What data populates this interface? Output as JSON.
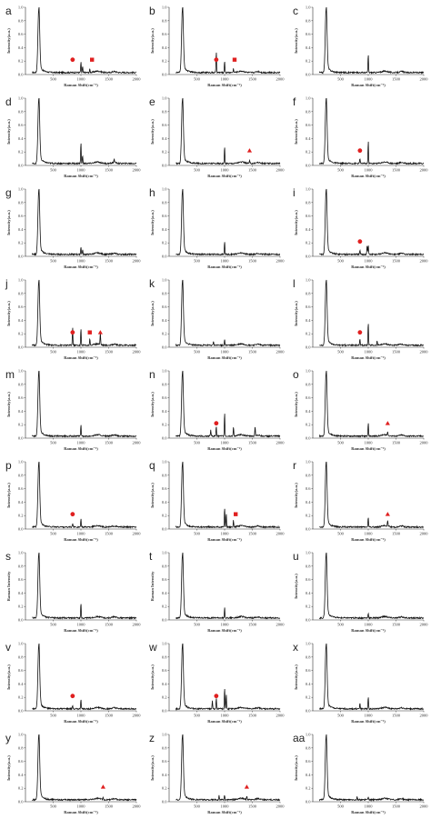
{
  "figure": {
    "columns": 3,
    "rows": 9
  },
  "chart_data": [
    {
      "id": "a",
      "type": "line",
      "xlabel": "Raman Shift(cm⁻¹)",
      "ylabel": "Intensity(a.u.)",
      "xlim": [
        0,
        2000
      ],
      "ylim": [
        0,
        1.0
      ],
      "xticks": [
        500,
        1000,
        1500,
        2000
      ],
      "yticks": [
        0.0,
        0.2,
        0.4,
        0.6,
        0.8,
        1.0
      ],
      "peaks": [
        [
          1000,
          0.16
        ],
        [
          1030,
          0.09
        ],
        [
          1160,
          0.05
        ]
      ],
      "markers": [
        {
          "shape": "circle",
          "x": 850
        },
        {
          "shape": "square",
          "x": 1200
        }
      ]
    },
    {
      "id": "b",
      "type": "line",
      "xlabel": "Raman Shift(cm⁻¹)",
      "ylabel": "Intensity(a.u.)",
      "xlim": [
        0,
        2000
      ],
      "ylim": [
        0,
        1.0
      ],
      "xticks": [
        500,
        1000,
        1500,
        2000
      ],
      "yticks": [
        0.0,
        0.2,
        0.4,
        0.6,
        0.8,
        1.0
      ],
      "peaks": [
        [
          850,
          0.32
        ],
        [
          1000,
          0.18
        ],
        [
          1160,
          0.06
        ]
      ],
      "markers": [
        {
          "shape": "circle",
          "x": 850
        },
        {
          "shape": "square",
          "x": 1180
        }
      ]
    },
    {
      "id": "c",
      "type": "line",
      "xlabel": "Raman Shift(cm⁻¹)",
      "ylabel": "Intensity(a.u.)",
      "xlim": [
        0,
        2000
      ],
      "ylim": [
        0,
        1.0
      ],
      "xticks": [
        500,
        1000,
        1500,
        2000
      ],
      "yticks": [
        0.0,
        0.2,
        0.4,
        0.6,
        0.8,
        1.0
      ],
      "peaks": [
        [
          1000,
          0.28
        ]
      ],
      "markers": []
    },
    {
      "id": "d",
      "type": "line",
      "xlabel": "Raman Shift(cm⁻¹)",
      "ylabel": "Intensity(a.u.)",
      "xlim": [
        0,
        2000
      ],
      "ylim": [
        0,
        1.0
      ],
      "xticks": [
        500,
        1000,
        1500,
        2000
      ],
      "yticks": [
        0.0,
        0.2,
        0.4,
        0.6,
        0.8,
        1.0
      ],
      "peaks": [
        [
          1000,
          0.32
        ],
        [
          1030,
          0.12
        ],
        [
          1600,
          0.06
        ]
      ],
      "markers": []
    },
    {
      "id": "e",
      "type": "line",
      "xlabel": "Raman Shift(cm⁻¹)",
      "ylabel": "Intensity(a.u.)",
      "xlim": [
        0,
        2000
      ],
      "ylim": [
        0,
        1.0
      ],
      "xticks": [
        500,
        1000,
        1500,
        2000
      ],
      "yticks": [
        0.0,
        0.2,
        0.4,
        0.6,
        0.8,
        1.0
      ],
      "peaks": [
        [
          1000,
          0.25
        ],
        [
          1450,
          0.04
        ]
      ],
      "markers": [
        {
          "shape": "triangle",
          "x": 1450
        }
      ]
    },
    {
      "id": "f",
      "type": "line",
      "xlabel": "Raman Shift(cm⁻¹)",
      "ylabel": "Intensity(a.u.)",
      "xlim": [
        0,
        2000
      ],
      "ylim": [
        0,
        1.0
      ],
      "xticks": [
        500,
        1000,
        1500,
        2000
      ],
      "yticks": [
        0.0,
        0.2,
        0.4,
        0.6,
        0.8,
        1.0
      ],
      "peaks": [
        [
          850,
          0.08
        ],
        [
          1000,
          0.34
        ]
      ],
      "markers": [
        {
          "shape": "circle",
          "x": 850
        }
      ]
    },
    {
      "id": "g",
      "type": "line",
      "xlabel": "Raman Shift(cm⁻¹)",
      "ylabel": "Intensity(a.u.)",
      "xlim": [
        0,
        2000
      ],
      "ylim": [
        0,
        1.0
      ],
      "xticks": [
        500,
        1000,
        1500,
        2000
      ],
      "yticks": [
        0.0,
        0.2,
        0.4,
        0.6,
        0.8,
        1.0
      ],
      "peaks": [
        [
          1000,
          0.12
        ],
        [
          1030,
          0.07
        ]
      ],
      "markers": []
    },
    {
      "id": "h",
      "type": "line",
      "xlabel": "Raman Shift(cm⁻¹)",
      "ylabel": "Intensity(a.u.)",
      "xlim": [
        0,
        2000
      ],
      "ylim": [
        0,
        1.0
      ],
      "xticks": [
        500,
        1000,
        1500,
        2000
      ],
      "yticks": [
        0.0,
        0.2,
        0.4,
        0.6,
        0.8,
        1.0
      ],
      "peaks": [
        [
          1000,
          0.2
        ]
      ],
      "markers": []
    },
    {
      "id": "i",
      "type": "line",
      "xlabel": "Raman Shift(cm⁻¹)",
      "ylabel": "Intensity(a.u.)",
      "xlim": [
        0,
        2000
      ],
      "ylim": [
        0,
        1.0
      ],
      "xticks": [
        500,
        1000,
        1500,
        2000
      ],
      "yticks": [
        0.0,
        0.2,
        0.4,
        0.6,
        0.8,
        1.0
      ],
      "peaks": [
        [
          850,
          0.06
        ],
        [
          980,
          0.14
        ],
        [
          1000,
          0.14
        ]
      ],
      "markers": [
        {
          "shape": "circle",
          "x": 850
        }
      ]
    },
    {
      "id": "j",
      "type": "line",
      "xlabel": "Raman Shift(cm⁻¹)",
      "ylabel": "Intensity(a.u.)",
      "xlim": [
        0,
        2000
      ],
      "ylim": [
        0,
        1.0
      ],
      "xticks": [
        500,
        1000,
        1500,
        2000
      ],
      "yticks": [
        0.0,
        0.2,
        0.4,
        0.6,
        0.8,
        1.0
      ],
      "peaks": [
        [
          850,
          0.28
        ],
        [
          1000,
          0.25
        ],
        [
          1160,
          0.1
        ],
        [
          1350,
          0.18
        ]
      ],
      "markers": [
        {
          "shape": "circle",
          "x": 850
        },
        {
          "shape": "square",
          "x": 1160
        },
        {
          "shape": "triangle",
          "x": 1350
        }
      ]
    },
    {
      "id": "k",
      "type": "line",
      "xlabel": "Raman Shift(cm⁻¹)",
      "ylabel": "Intensity(a.u.)",
      "xlim": [
        0,
        2000
      ],
      "ylim": [
        0,
        1.0
      ],
      "xticks": [
        500,
        1000,
        1500,
        2000
      ],
      "yticks": [
        0.0,
        0.2,
        0.4,
        0.6,
        0.8,
        1.0
      ],
      "peaks": [
        [
          800,
          0.05
        ],
        [
          1000,
          0.08
        ]
      ],
      "markers": []
    },
    {
      "id": "l",
      "type": "line",
      "xlabel": "Raman Shift(cm⁻¹)",
      "ylabel": "Intensity(a.u.)",
      "xlim": [
        0,
        2000
      ],
      "ylim": [
        0,
        1.0
      ],
      "xticks": [
        500,
        1000,
        1500,
        2000
      ],
      "yticks": [
        0.0,
        0.2,
        0.4,
        0.6,
        0.8,
        1.0
      ],
      "peaks": [
        [
          850,
          0.1
        ],
        [
          1000,
          0.35
        ],
        [
          1160,
          0.06
        ]
      ],
      "markers": [
        {
          "shape": "circle",
          "x": 850
        }
      ]
    },
    {
      "id": "m",
      "type": "line",
      "xlabel": "Raman Shift(cm⁻¹)",
      "ylabel": "Intensity(a.u.)",
      "xlim": [
        0,
        2000
      ],
      "ylim": [
        0,
        1.0
      ],
      "xticks": [
        500,
        1000,
        1500,
        2000
      ],
      "yticks": [
        0.0,
        0.2,
        0.4,
        0.6,
        0.8,
        1.0
      ],
      "peaks": [
        [
          1000,
          0.18
        ]
      ],
      "markers": []
    },
    {
      "id": "n",
      "type": "line",
      "xlabel": "Raman Shift(cm⁻¹)",
      "ylabel": "Intensity(a.u.)",
      "xlim": [
        0,
        2000
      ],
      "ylim": [
        0,
        1.0
      ],
      "xticks": [
        500,
        1000,
        1500,
        2000
      ],
      "yticks": [
        0.0,
        0.2,
        0.4,
        0.6,
        0.8,
        1.0
      ],
      "peaks": [
        [
          750,
          0.1
        ],
        [
          850,
          0.16
        ],
        [
          1000,
          0.36
        ],
        [
          1160,
          0.14
        ],
        [
          1550,
          0.14
        ]
      ],
      "markers": [
        {
          "shape": "circle",
          "x": 850
        }
      ]
    },
    {
      "id": "o",
      "type": "line",
      "xlabel": "Raman Shift(cm⁻¹)",
      "ylabel": "Intensity(a.u.)",
      "xlim": [
        0,
        2000
      ],
      "ylim": [
        0,
        1.0
      ],
      "xticks": [
        500,
        1000,
        1500,
        2000
      ],
      "yticks": [
        0.0,
        0.2,
        0.4,
        0.6,
        0.8,
        1.0
      ],
      "peaks": [
        [
          1000,
          0.2
        ],
        [
          1350,
          0.06
        ]
      ],
      "markers": [
        {
          "shape": "triangle",
          "x": 1350
        }
      ]
    },
    {
      "id": "p",
      "type": "line",
      "xlabel": "Raman Shift(cm⁻¹)",
      "ylabel": "Intensity(a.u.)",
      "xlim": [
        0,
        2000
      ],
      "ylim": [
        0,
        1.0
      ],
      "xticks": [
        500,
        1000,
        1500,
        2000
      ],
      "yticks": [
        0.0,
        0.2,
        0.4,
        0.6,
        0.8,
        1.0
      ],
      "peaks": [
        [
          850,
          0.05
        ],
        [
          1000,
          0.12
        ]
      ],
      "markers": [
        {
          "shape": "circle",
          "x": 850
        }
      ]
    },
    {
      "id": "q",
      "type": "line",
      "xlabel": "Raman Shift(cm⁻¹)",
      "ylabel": "Intensity(a.u.)",
      "xlim": [
        0,
        2000
      ],
      "ylim": [
        0,
        1.0
      ],
      "xticks": [
        500,
        1000,
        1500,
        2000
      ],
      "yticks": [
        0.0,
        0.2,
        0.4,
        0.6,
        0.8,
        1.0
      ],
      "peaks": [
        [
          1000,
          0.3
        ],
        [
          1030,
          0.2
        ],
        [
          1160,
          0.1
        ]
      ],
      "markers": [
        {
          "shape": "square",
          "x": 1200
        }
      ]
    },
    {
      "id": "r",
      "type": "line",
      "xlabel": "Raman Shift(cm⁻¹)",
      "ylabel": "Intensity(a.u.)",
      "xlim": [
        0,
        2000
      ],
      "ylim": [
        0,
        1.0
      ],
      "xticks": [
        500,
        1000,
        1500,
        2000
      ],
      "yticks": [
        0.0,
        0.2,
        0.4,
        0.6,
        0.8,
        1.0
      ],
      "peaks": [
        [
          1000,
          0.15
        ],
        [
          1350,
          0.09
        ]
      ],
      "markers": [
        {
          "shape": "triangle",
          "x": 1350
        }
      ]
    },
    {
      "id": "s",
      "type": "line",
      "xlabel": "Raman Shift(cm⁻¹)",
      "ylabel": "Raman Intensity",
      "xlim": [
        0,
        2000
      ],
      "ylim": [
        0,
        1.0
      ],
      "xticks": [
        500,
        1000,
        1500,
        2000
      ],
      "yticks": [
        0.0,
        0.2,
        0.4,
        0.6,
        0.8,
        1.0
      ],
      "peaks": [
        [
          1000,
          0.22
        ]
      ],
      "markers": []
    },
    {
      "id": "t",
      "type": "line",
      "xlabel": "Raman Shift(cm⁻¹)",
      "ylabel": "Raman Intensity",
      "xlim": [
        0,
        2000
      ],
      "ylim": [
        0,
        1.0
      ],
      "xticks": [
        500,
        1000,
        1500,
        2000
      ],
      "yticks": [
        0.0,
        0.2,
        0.4,
        0.6,
        0.8,
        1.0
      ],
      "peaks": [
        [
          1000,
          0.16
        ]
      ],
      "markers": []
    },
    {
      "id": "u",
      "type": "line",
      "xlabel": "Raman Shift(cm⁻¹)",
      "ylabel": "Intensity(a.u.)",
      "xlim": [
        0,
        2000
      ],
      "ylim": [
        0,
        1.0
      ],
      "xticks": [
        500,
        1000,
        1500,
        2000
      ],
      "yticks": [
        0.0,
        0.2,
        0.4,
        0.6,
        0.8,
        1.0
      ],
      "peaks": [
        [
          1000,
          0.08
        ]
      ],
      "markers": []
    },
    {
      "id": "v",
      "type": "line",
      "xlabel": "Raman Shift(cm⁻¹)",
      "ylabel": "Intensity(a.u.)",
      "xlim": [
        0,
        2000
      ],
      "ylim": [
        0,
        1.0
      ],
      "xticks": [
        500,
        1000,
        1500,
        2000
      ],
      "yticks": [
        0.0,
        0.2,
        0.4,
        0.6,
        0.8,
        1.0
      ],
      "peaks": [
        [
          850,
          0.06
        ],
        [
          1000,
          0.15
        ]
      ],
      "markers": [
        {
          "shape": "circle",
          "x": 850
        }
      ]
    },
    {
      "id": "w",
      "type": "line",
      "xlabel": "Raman Shift(cm⁻¹)",
      "ylabel": "Intensity(a.u.)",
      "xlim": [
        0,
        2000
      ],
      "ylim": [
        0,
        1.0
      ],
      "xticks": [
        500,
        1000,
        1500,
        2000
      ],
      "yticks": [
        0.0,
        0.2,
        0.4,
        0.6,
        0.8,
        1.0
      ],
      "peaks": [
        [
          780,
          0.12
        ],
        [
          850,
          0.16
        ],
        [
          1000,
          0.32
        ],
        [
          1030,
          0.22
        ]
      ],
      "markers": [
        {
          "shape": "circle",
          "x": 850
        }
      ]
    },
    {
      "id": "x",
      "type": "line",
      "xlabel": "Raman Shift(cm⁻¹)",
      "ylabel": "Intensity(a.u.)",
      "xlim": [
        0,
        2000
      ],
      "ylim": [
        0,
        1.0
      ],
      "xticks": [
        500,
        1000,
        1500,
        2000
      ],
      "yticks": [
        0.0,
        0.2,
        0.4,
        0.6,
        0.8,
        1.0
      ],
      "peaks": [
        [
          850,
          0.08
        ],
        [
          1000,
          0.18
        ]
      ],
      "markers": []
    },
    {
      "id": "y",
      "type": "line",
      "xlabel": "Raman Shift(cm⁻¹)",
      "ylabel": "Intensity(a.u.)",
      "xlim": [
        0,
        2000
      ],
      "ylim": [
        0,
        1.0
      ],
      "xticks": [
        500,
        1000,
        1500,
        2000
      ],
      "yticks": [
        0.0,
        0.2,
        0.4,
        0.6,
        0.8,
        1.0
      ],
      "peaks": [
        [
          1400,
          0.03
        ]
      ],
      "markers": [
        {
          "shape": "triangle",
          "x": 1400
        }
      ]
    },
    {
      "id": "z",
      "type": "line",
      "xlabel": "Raman Shift(cm⁻¹)",
      "ylabel": "Intensity(a.u.)",
      "xlim": [
        0,
        2000
      ],
      "ylim": [
        0,
        1.0
      ],
      "xticks": [
        500,
        1000,
        1500,
        2000
      ],
      "yticks": [
        0.0,
        0.2,
        0.4,
        0.6,
        0.8,
        1.0
      ],
      "peaks": [
        [
          900,
          0.06
        ],
        [
          1000,
          0.07
        ],
        [
          1400,
          0.05
        ]
      ],
      "markers": [
        {
          "shape": "triangle",
          "x": 1400
        }
      ]
    },
    {
      "id": "aa",
      "type": "line",
      "xlabel": "Raman Shift(cm⁻¹)",
      "ylabel": "Intensity(a.u.)",
      "xlim": [
        0,
        2000
      ],
      "ylim": [
        0,
        1.0
      ],
      "xticks": [
        500,
        1000,
        1500,
        2000
      ],
      "yticks": [
        0.0,
        0.2,
        0.4,
        0.6,
        0.8,
        1.0
      ],
      "peaks": [
        [
          800,
          0.05
        ],
        [
          1000,
          0.05
        ]
      ],
      "markers": []
    }
  ],
  "colors": {
    "line": "#111111",
    "marker": "#e02020",
    "axis": "#333333"
  }
}
